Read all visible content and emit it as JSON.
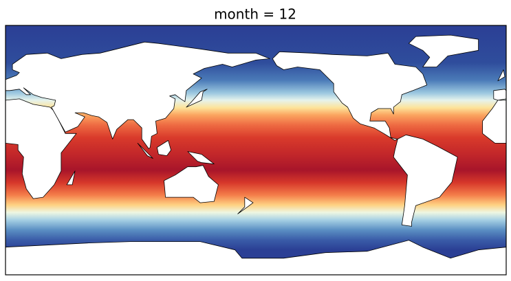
{
  "title": "month = 12"
}
